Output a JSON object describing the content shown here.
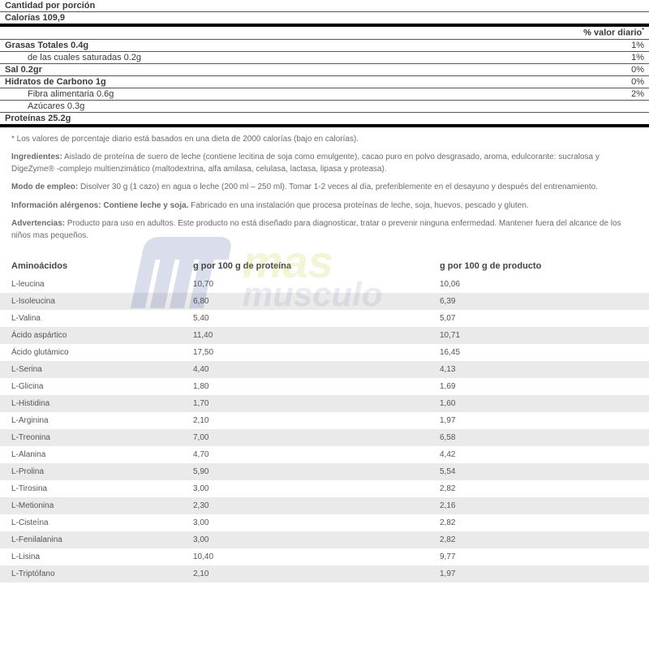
{
  "nutrition": {
    "serving_label": "Cantidad por porción",
    "calories_label": "Calorías",
    "calories_value": "109,9",
    "daily_value_header": "% valor diario",
    "rows": [
      {
        "label": "Grasas Totales",
        "amount": "0.4g",
        "dv": "1%",
        "bold": true,
        "indent": false
      },
      {
        "label": "de las cuales saturadas",
        "amount": "0.2g",
        "dv": "1%",
        "bold": false,
        "indent": true
      },
      {
        "label": "Sal",
        "amount": "0.2gr",
        "dv": "0%",
        "bold": true,
        "indent": false
      },
      {
        "label": "Hidratos de Carbono",
        "amount": "1g",
        "dv": "0%",
        "bold": true,
        "indent": false
      },
      {
        "label": "Fibra alimentaria",
        "amount": "0.6g",
        "dv": "2%",
        "bold": false,
        "indent": true
      },
      {
        "label": "Azúcares",
        "amount": "0.3g",
        "dv": "",
        "bold": false,
        "indent": true
      },
      {
        "label": "Proteínas",
        "amount": "25.2g",
        "dv": "",
        "bold": true,
        "indent": false,
        "thick": true
      }
    ]
  },
  "notes": {
    "footnote": "* Los valores de porcentaje diario está basados en una dieta de 2000 calorías (bajo en calorías).",
    "ingredients_label": "Ingredientes:",
    "ingredients_text": " Aislado de proteína de suero de leche (contiene lecitina de soja como emulgente), cacao puro en polvo desgrasado, aroma, edulcorante: sucralosa y DigeZyme® -complejo multienzimático (maltodextrina, alfa amilasa, celulasa, lactasa, lipasa y proteasa).",
    "usage_label": "Modo de empleo:",
    "usage_text": " Disolver 30 g (1 cazo) en agua o leche (200 ml – 250 ml). Tomar 1-2 veces al día, preferiblemente en el desayuno y después del entrenamiento.",
    "allergen_label": "Información alérgenos:",
    "allergen_bold": " Contiene leche y soja.",
    "allergen_text": " Fabricado en una instalación que procesa proteínas de leche, soja, huevos, pescado y gluten.",
    "warning_label": "Advertencias:",
    "warning_text": " Producto para uso en adultos. Este producto no está diseñado para diagnosticar, tratar o prevenir ninguna enfermedad. Mantener fuera del alcance de los niños mas pequeños."
  },
  "amino": {
    "col1": "Aminoácidos",
    "col2": "g por 100 g de proteína",
    "col3": "g por 100 g de producto",
    "rows": [
      {
        "n": "L-leucina",
        "a": "10,70",
        "b": "10,06"
      },
      {
        "n": "L-Isoleucina",
        "a": "6,80",
        "b": "6,39"
      },
      {
        "n": "L-Valina",
        "a": "5,40",
        "b": "5,07"
      },
      {
        "n": "Ácido aspártico",
        "a": "11,40",
        "b": "10,71"
      },
      {
        "n": "Ácido glutámico",
        "a": "17,50",
        "b": "16,45"
      },
      {
        "n": "L-Serina",
        "a": "4,40",
        "b": "4,13"
      },
      {
        "n": "L-Glicina",
        "a": "1,80",
        "b": "1,69"
      },
      {
        "n": "L-Histidina",
        "a": "1,70",
        "b": "1,60"
      },
      {
        "n": "L-Arginina",
        "a": "2,10",
        "b": "1,97"
      },
      {
        "n": "L-Treonina",
        "a": "7,00",
        "b": "6,58"
      },
      {
        "n": "L-Alanina",
        "a": "4,70",
        "b": "4,42"
      },
      {
        "n": "L-Prolina",
        "a": "5,90",
        "b": "5,54"
      },
      {
        "n": "L-Tirosina",
        "a": "3,00",
        "b": "2,82"
      },
      {
        "n": "L-Metionina",
        "a": "2,30",
        "b": "2,16"
      },
      {
        "n": "L-Cisteína",
        "a": "3,00",
        "b": "2,82"
      },
      {
        "n": "L-Fenilalanina",
        "a": "3,00",
        "b": "2,82"
      },
      {
        "n": "L-Lisina",
        "a": "10,40",
        "b": "9,77"
      },
      {
        "n": "L-Triptófano",
        "a": "2,10",
        "b": "1,97"
      }
    ]
  },
  "watermark": {
    "mas": "mas",
    "musculo": "musculo"
  }
}
